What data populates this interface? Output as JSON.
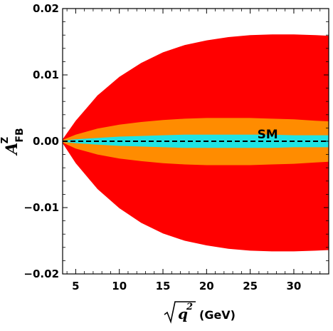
{
  "chart_data": {
    "type": "area",
    "title": "",
    "xlabel": {
      "sqrt": "√",
      "var": "q",
      "power": "2",
      "unit": "(GeV)"
    },
    "ylabel": {
      "base": "A",
      "sup": "Z",
      "sub": "FB"
    },
    "xlim": [
      3.5,
      34
    ],
    "ylim": [
      -0.02,
      0.02
    ],
    "x_ticks": [
      5,
      10,
      15,
      20,
      25,
      30
    ],
    "x_tick_labels": [
      "5",
      "10",
      "15",
      "20",
      "25",
      "30"
    ],
    "y_ticks": [
      -0.02,
      -0.01,
      0.0,
      0.01,
      0.02
    ],
    "y_tick_labels": [
      "−0.02",
      "−0.01",
      "0.00",
      "0.01",
      "0.02"
    ],
    "x": [
      3.5,
      5,
      7.5,
      10,
      12.5,
      15,
      17.5,
      20,
      22.5,
      25,
      27.5,
      30,
      32.5,
      34
    ],
    "series": [
      {
        "color": "#ff0000",
        "upper": [
          0.0003,
          0.0031,
          0.0069,
          0.0097,
          0.0118,
          0.0134,
          0.0145,
          0.0152,
          0.0157,
          0.016,
          0.0161,
          0.0161,
          0.016,
          0.0159
        ],
        "lower": [
          -0.0003,
          -0.0033,
          -0.0072,
          -0.0101,
          -0.0123,
          -0.0139,
          -0.015,
          -0.0157,
          -0.0162,
          -0.0165,
          -0.0166,
          -0.0166,
          -0.0165,
          -0.0164
        ]
      },
      {
        "color": "#ff8c00",
        "upper": [
          0.0002,
          0.001,
          0.0019,
          0.0025,
          0.0029,
          0.0032,
          0.0034,
          0.0035,
          0.0035,
          0.0035,
          0.0034,
          0.0033,
          0.0031,
          0.003
        ],
        "lower": [
          -0.0002,
          -0.0011,
          -0.002,
          -0.0026,
          -0.003,
          -0.0033,
          -0.0035,
          -0.0036,
          -0.0036,
          -0.0036,
          -0.0035,
          -0.0034,
          -0.0032,
          -0.0031
        ]
      },
      {
        "color": "#1fe3e3",
        "upper": [
          0.0001,
          0.0003,
          0.0005,
          0.0007,
          0.0008,
          0.0009,
          0.001,
          0.001,
          0.001,
          0.001,
          0.001,
          0.0009,
          0.0009,
          0.0009
        ],
        "lower": [
          -0.0001,
          -0.0003,
          -0.0005,
          -0.0007,
          -0.0008,
          -0.0009,
          -0.001,
          -0.001,
          -0.001,
          -0.001,
          -0.001,
          -0.0009,
          -0.0009,
          -0.0009
        ]
      }
    ],
    "sm_line": {
      "label": "SM",
      "y": 0.0,
      "style": "dashed",
      "color": "#000000",
      "label_x": 27
    },
    "grid": false
  }
}
